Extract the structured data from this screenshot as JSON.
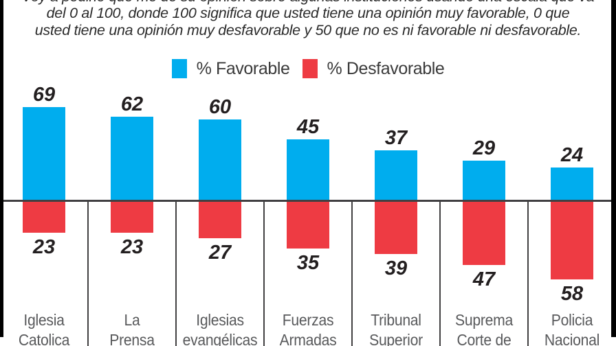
{
  "intro": {
    "line1_partially_cut": "Voy a pedirle que me dé su opinión sobre algunas instituciones usando una escala que va",
    "line2": "del 0 al 100, donde 100 significa que usted tiene una opinión muy favorable, 0 que",
    "line3": "usted tiene una opinión muy desfavorable y 50 que no es ni favorable ni desfavorable."
  },
  "legend": {
    "favorable_label": "% Favorable",
    "desfavorable_label": "% Desfavorable"
  },
  "colors": {
    "favorable": "#00ADEE",
    "desfavorable": "#EE3B43",
    "axis": "#414042",
    "value_text": "#231f20",
    "category_text": "#58595b"
  },
  "chart_data": {
    "type": "bar",
    "subtype": "diverging-vertical",
    "baseline_value": 0,
    "categories": [
      {
        "line1": "Iglesia",
        "line2": "Catolica"
      },
      {
        "line1": "La",
        "line2": "Prensa"
      },
      {
        "line1": "Iglesias",
        "line2": "evangélicas"
      },
      {
        "line1": "Fuerzas",
        "line2": "Armadas"
      },
      {
        "line1": "Tribunal",
        "line2": "Superior"
      },
      {
        "line1": "Suprema",
        "line2": "Corte de"
      },
      {
        "line1": "Policia",
        "line2": "Nacional"
      }
    ],
    "series": [
      {
        "name": "% Favorable",
        "direction": "up",
        "color": "#00ADEE",
        "values": [
          69,
          62,
          60,
          45,
          37,
          29,
          24
        ]
      },
      {
        "name": "% Desfavorable",
        "direction": "down",
        "color": "#EE3B43",
        "values": [
          23,
          23,
          27,
          35,
          39,
          47,
          58
        ]
      }
    ],
    "value_labels_shown": true,
    "grid": false,
    "legend_position": "top-center"
  }
}
